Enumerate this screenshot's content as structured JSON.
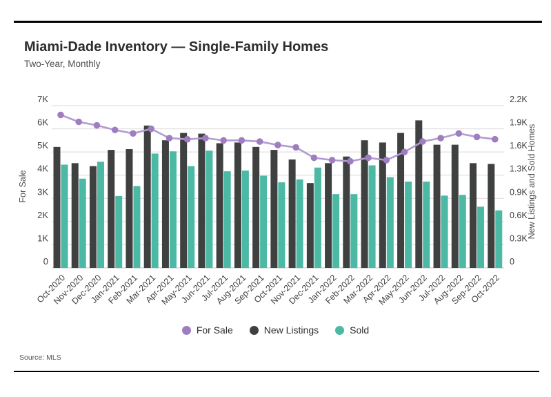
{
  "header": {
    "title": "Miami-Dade Inventory — Single-Family Homes",
    "subtitle": "Two-Year, Monthly"
  },
  "source_note": "Source: MLS",
  "legend": {
    "items": [
      {
        "label": "For Sale",
        "color": "#9f7dc1"
      },
      {
        "label": "New Listings",
        "color": "#3f4040"
      },
      {
        "label": "Sold",
        "color": "#4cb9a5"
      }
    ]
  },
  "colors": {
    "gridline": "#dadada",
    "baseline": "#c2c2c2",
    "tick_text": "#3f3f3f",
    "rule": "#000000",
    "background": "#ffffff"
  },
  "chart_data": {
    "type": "bar",
    "subtype": "combo bar + line, dual axis",
    "title": "Miami-Dade Inventory — Single-Family Homes",
    "subtitle": "Two-Year, Monthly",
    "grid": true,
    "legend_position": "bottom",
    "source": "Source: MLS",
    "categories": [
      "Oct-2020",
      "Nov-2020",
      "Dec-2020",
      "Jan-2021",
      "Feb-2021",
      "Mar-2021",
      "Apr-2021",
      "May-2021",
      "Jun-2021",
      "Jul-2021",
      "Aug-2021",
      "Sep-2021",
      "Oct-2021",
      "Nov-2021",
      "Dec-2021",
      "Jan-2022",
      "Feb-2022",
      "Mar-2022",
      "Apr-2022",
      "May-2022",
      "Jun-2022",
      "Jul-2022",
      "Aug-2022",
      "Sep-2022",
      "Oct-2022"
    ],
    "series": [
      {
        "name": "For Sale",
        "type": "line",
        "axis": "left",
        "color": "#9f7dc1",
        "line_color": "#b39ad1",
        "values": [
          6600,
          6300,
          6150,
          5950,
          5800,
          6000,
          5600,
          5550,
          5600,
          5500,
          5500,
          5450,
          5300,
          5200,
          4750,
          4650,
          4600,
          4750,
          4650,
          5000,
          5450,
          5600,
          5800,
          5650,
          5550
        ]
      },
      {
        "name": "New Listings",
        "type": "bar",
        "axis": "right",
        "color": "#3f4040",
        "values": [
          1640,
          1420,
          1380,
          1600,
          1610,
          1930,
          1730,
          1830,
          1820,
          1690,
          1700,
          1640,
          1600,
          1470,
          1150,
          1420,
          1510,
          1730,
          1700,
          1830,
          2000,
          1670,
          1670,
          1420,
          1410
        ]
      },
      {
        "name": "Sold",
        "type": "bar",
        "axis": "right",
        "color": "#4cb9a5",
        "values": [
          1400,
          1210,
          1440,
          975,
          1110,
          1550,
          1580,
          1380,
          1590,
          1310,
          1320,
          1250,
          1160,
          1200,
          1360,
          1000,
          1000,
          1390,
          1230,
          1170,
          1170,
          980,
          990,
          830,
          780
        ]
      }
    ],
    "left_axis": {
      "title": "For Sale",
      "min": 0,
      "max": 7000,
      "ticks": [
        "0",
        "1K",
        "2K",
        "3K",
        "4K",
        "5K",
        "6K",
        "7K"
      ]
    },
    "right_axis": {
      "title": "New Listings and Sold Homes",
      "min": 0,
      "max": 2200,
      "ticks": [
        "0",
        "0.3K",
        "0.6K",
        "0.9K",
        "1.3K",
        "1.6K",
        "1.9K",
        "2.2K"
      ]
    }
  }
}
